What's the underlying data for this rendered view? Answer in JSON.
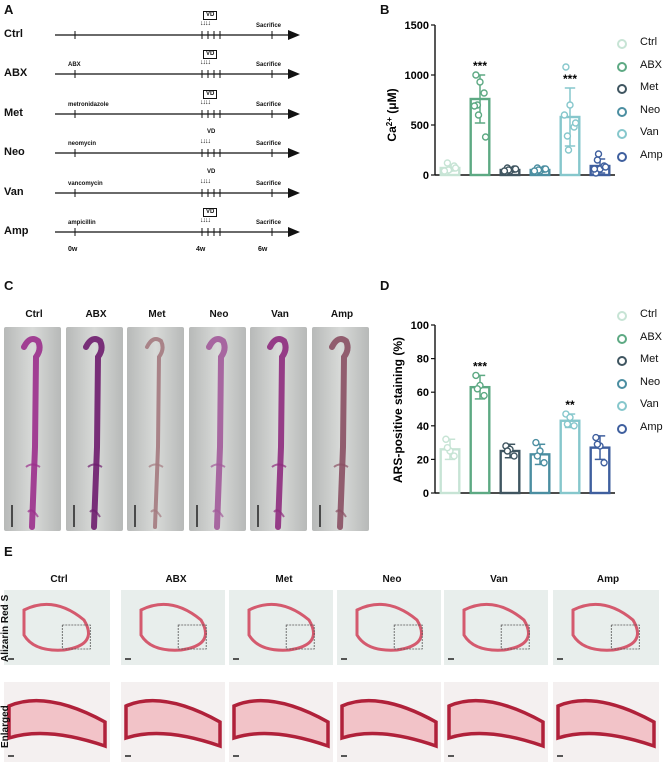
{
  "panels": {
    "a": "A",
    "b": "B",
    "c": "C",
    "d": "D",
    "e": "E"
  },
  "panel_a": {
    "groups": [
      {
        "name": "Ctrl",
        "drug": "",
        "vd_boxed": true
      },
      {
        "name": "ABX",
        "drug": "ABX",
        "vd_boxed": true
      },
      {
        "name": "Met",
        "drug": "metronidazole",
        "vd_boxed": true
      },
      {
        "name": "Neo",
        "drug": "neomycin",
        "vd_boxed": false
      },
      {
        "name": "Van",
        "drug": "vancomycin",
        "vd_boxed": false
      },
      {
        "name": "Amp",
        "drug": "ampicillin",
        "vd_boxed": true
      }
    ],
    "vd_label": "VD",
    "arrows": "↓↓↓↓",
    "sacrifice_label": "Sacrifice",
    "timepoints": [
      "0w",
      "4w",
      "6w"
    ]
  },
  "legend": [
    "Ctrl",
    "ABX",
    "Met",
    "Neo",
    "Van",
    "Amp"
  ],
  "colors": {
    "Ctrl": "#c7e4d5",
    "ABX": "#5da983",
    "Met": "#3f5560",
    "Neo": "#4b8ea1",
    "Van": "#86c7cc",
    "Amp": "#3f5f9e"
  },
  "panel_c": {
    "labels": [
      "Ctrl",
      "ABX",
      "Met",
      "Neo",
      "Van",
      "Amp"
    ]
  },
  "panel_e": {
    "columns": [
      "Ctrl",
      "ABX",
      "Met",
      "Neo",
      "Van",
      "Amp"
    ],
    "row1_label": "Alizarin Red S",
    "row2_label": "Enlarged"
  },
  "chart_data": [
    {
      "type": "bar",
      "title": "",
      "ylabel_main": "Ca",
      "ylabel_sup": "2+",
      "ylabel_unit": " (μM)",
      "categories": [
        "Ctrl",
        "ABX",
        "Met",
        "Neo",
        "Van",
        "Amp"
      ],
      "values": [
        70,
        760,
        50,
        50,
        580,
        90
      ],
      "errors": [
        30,
        240,
        20,
        20,
        290,
        70
      ],
      "points": [
        [
          30,
          60,
          90,
          120,
          50,
          70,
          40
        ],
        [
          1000,
          930,
          820,
          700,
          600,
          380,
          690
        ],
        [
          30,
          40,
          60,
          70,
          50,
          60,
          40
        ],
        [
          30,
          40,
          60,
          70,
          50,
          60,
          40
        ],
        [
          1080,
          700,
          480,
          390,
          250,
          520,
          600
        ],
        [
          20,
          60,
          90,
          150,
          210,
          80,
          60
        ]
      ],
      "significance": [
        "",
        "***",
        "",
        "",
        "***",
        ""
      ],
      "ylim": [
        0,
        1500
      ],
      "yticks": [
        0,
        500,
        1000,
        1500
      ]
    },
    {
      "type": "bar",
      "title": "",
      "ylabel": "ARS-positive staining (%)",
      "categories": [
        "Ctrl",
        "ABX",
        "Met",
        "Neo",
        "Van",
        "Amp"
      ],
      "values": [
        26,
        63,
        25,
        23,
        43,
        27
      ],
      "errors": [
        6,
        7,
        4,
        6,
        4,
        7
      ],
      "points": [
        [
          32,
          25,
          22,
          27
        ],
        [
          70,
          64,
          58,
          62
        ],
        [
          28,
          26,
          22,
          25
        ],
        [
          30,
          25,
          18,
          22
        ],
        [
          47,
          45,
          40,
          41
        ],
        [
          33,
          28,
          18,
          29
        ]
      ],
      "significance": [
        "",
        "***",
        "",
        "",
        "**",
        ""
      ],
      "ylim": [
        0,
        100
      ],
      "yticks": [
        0,
        20,
        40,
        60,
        80,
        100
      ]
    }
  ]
}
